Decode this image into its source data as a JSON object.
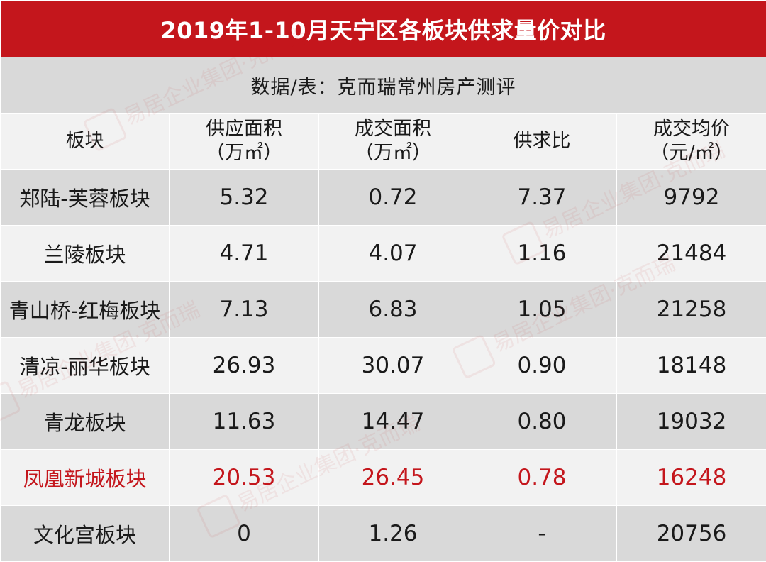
{
  "title": "2019年1-10月天宁区各板块供求量价对比",
  "source": "数据/表：克而瑞常州房产测评",
  "headers": [
    {
      "line1": "板块",
      "line2": ""
    },
    {
      "line1": "供应面积",
      "line2": "（万㎡）"
    },
    {
      "line1": "成交面积",
      "line2": "（万㎡）"
    },
    {
      "line1": "供求比",
      "line2": ""
    },
    {
      "line1": "成交均价",
      "line2": "（元/㎡）"
    }
  ],
  "rows": [
    {
      "name": "郑陆-芙蓉板块",
      "supply": "5.32",
      "deal": "0.72",
      "ratio": "7.37",
      "price": "9792",
      "highlight": false
    },
    {
      "name": "兰陵板块",
      "supply": "4.71",
      "deal": "4.07",
      "ratio": "1.16",
      "price": "21484",
      "highlight": false
    },
    {
      "name": "青山桥-红梅板块",
      "supply": "7.13",
      "deal": "6.83",
      "ratio": "1.05",
      "price": "21258",
      "highlight": false
    },
    {
      "name": "清凉-丽华板块",
      "supply": "26.93",
      "deal": "30.07",
      "ratio": "0.90",
      "price": "18148",
      "highlight": false
    },
    {
      "name": "青龙板块",
      "supply": "11.63",
      "deal": "14.47",
      "ratio": "0.80",
      "price": "19032",
      "highlight": false
    },
    {
      "name": "凤凰新城板块",
      "supply": "20.53",
      "deal": "26.45",
      "ratio": "0.78",
      "price": "16248",
      "highlight": true
    },
    {
      "name": "文化宫板块",
      "supply": "0",
      "deal": "1.26",
      "ratio": "-",
      "price": "20756",
      "highlight": false
    }
  ],
  "watermark": "易居企业集团·克而瑞",
  "colors": {
    "accent": "#c4161c",
    "band_dark": "#d9d9d9",
    "band_light": "#f2f2f2"
  }
}
